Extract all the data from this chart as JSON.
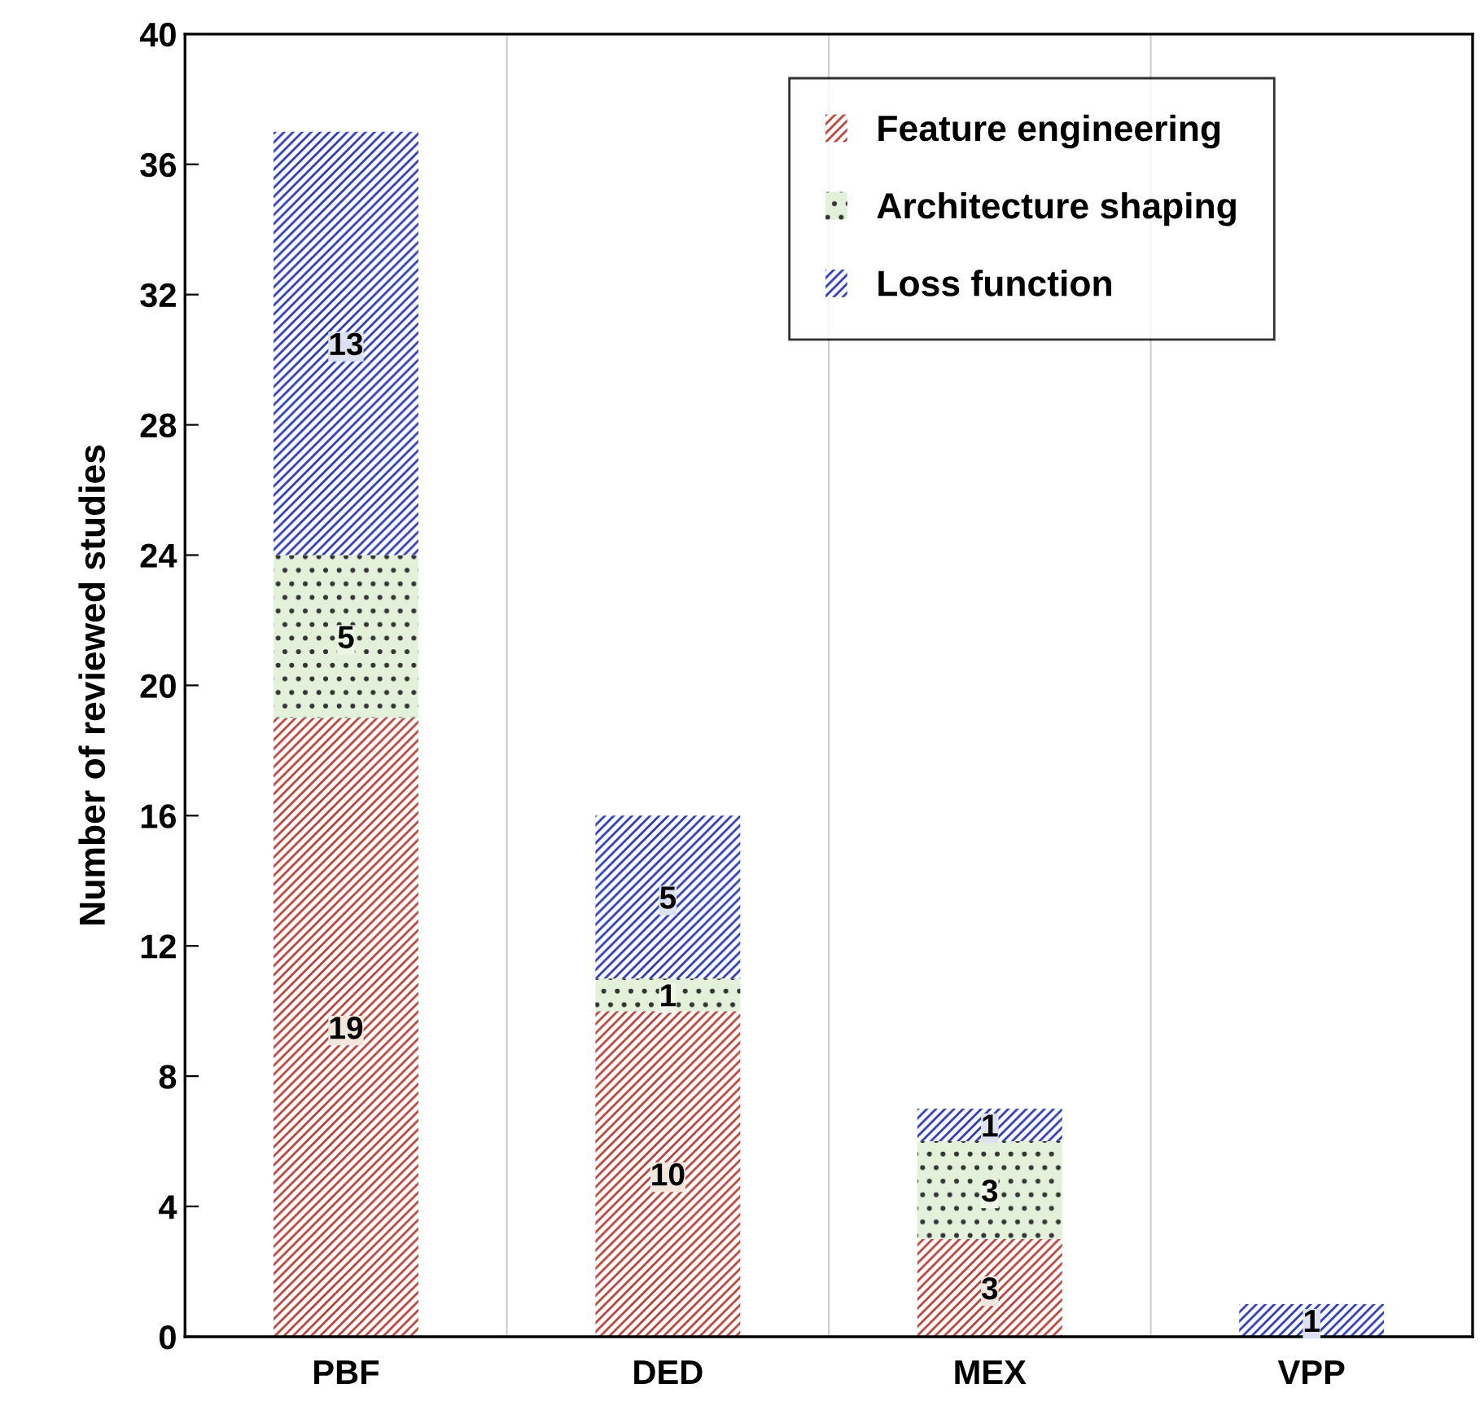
{
  "chart_data": {
    "type": "bar",
    "stacked": true,
    "ylabel": "Number of reviewed studies",
    "categories": [
      "PBF",
      "DED",
      "MEX",
      "VPP"
    ],
    "series": [
      {
        "name": "Feature engineering",
        "color": "#b5443c",
        "values": [
          19,
          10,
          3,
          0
        ],
        "value_labels": [
          "19",
          "10",
          "3",
          null
        ]
      },
      {
        "name": "Architecture shaping",
        "color": "#e3f1da",
        "values": [
          5,
          1,
          3,
          0
        ],
        "value_labels": [
          "5",
          "1",
          "3",
          null
        ]
      },
      {
        "name": "Loss function",
        "color": "#2e3db4",
        "values": [
          13,
          5,
          1,
          1
        ],
        "value_labels": [
          "13",
          "5",
          "1",
          "1"
        ]
      }
    ],
    "ylim": [
      0,
      40
    ],
    "yticks": [
      0,
      4,
      8,
      12,
      16,
      20,
      24,
      28,
      32,
      36,
      40
    ],
    "grid": "x",
    "legend": "top right"
  }
}
